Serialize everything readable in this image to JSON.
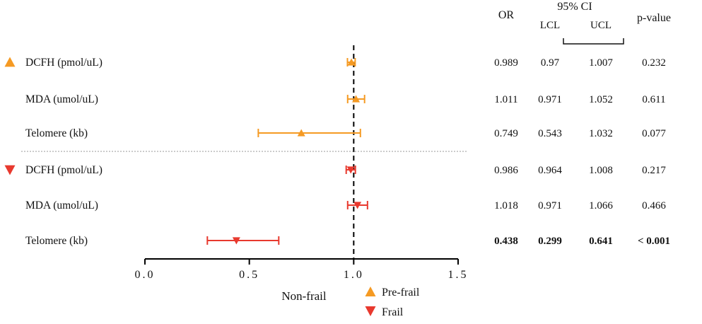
{
  "chart_data": {
    "type": "forest",
    "title": "",
    "xlabel": "Non-frail",
    "xlim": [
      0.0,
      1.5
    ],
    "xticks": [
      "0.0",
      "0.5",
      "1.0",
      "1.5"
    ],
    "reference_line": 1.0,
    "grid": false,
    "table_headers": {
      "or": "OR",
      "ci": "95% CI",
      "lcl": "LCL",
      "ucl": "UCL",
      "p": "p-value"
    },
    "groups": [
      {
        "name": "Pre-frail",
        "color": "#F59A23",
        "marker": "triangle-up",
        "rows": [
          {
            "label": "DCFH (pmol/uL)",
            "or": "0.989",
            "lcl": "0.97",
            "ucl": "1.007",
            "p": "0.232",
            "bold": false
          },
          {
            "label": "MDA (umol/uL)",
            "or": "1.011",
            "lcl": "0.971",
            "ucl": "1.052",
            "p": "0.611",
            "bold": false
          },
          {
            "label": "Telomere (kb)",
            "or": "0.749",
            "lcl": "0.543",
            "ucl": "1.032",
            "p": "0.077",
            "bold": false
          }
        ]
      },
      {
        "name": "Frail",
        "color": "#E8392E",
        "marker": "triangle-down",
        "rows": [
          {
            "label": "DCFH (pmol/uL)",
            "or": "0.986",
            "lcl": "0.964",
            "ucl": "1.008",
            "p": "0.217",
            "bold": false
          },
          {
            "label": "MDA (umol/uL)",
            "or": "1.018",
            "lcl": "0.971",
            "ucl": "1.066",
            "p": "0.466",
            "bold": false
          },
          {
            "label": "Telomere (kb)",
            "or": "0.438",
            "lcl": "0.299",
            "ucl": "0.641",
            "p": "< 0.001",
            "bold": true
          }
        ]
      }
    ],
    "legend": [
      {
        "label": "Pre-frail",
        "marker": "triangle-up",
        "color": "#F59A23"
      },
      {
        "label": "Frail",
        "marker": "triangle-down",
        "color": "#E8392E"
      }
    ],
    "legend_position": "bottom"
  }
}
